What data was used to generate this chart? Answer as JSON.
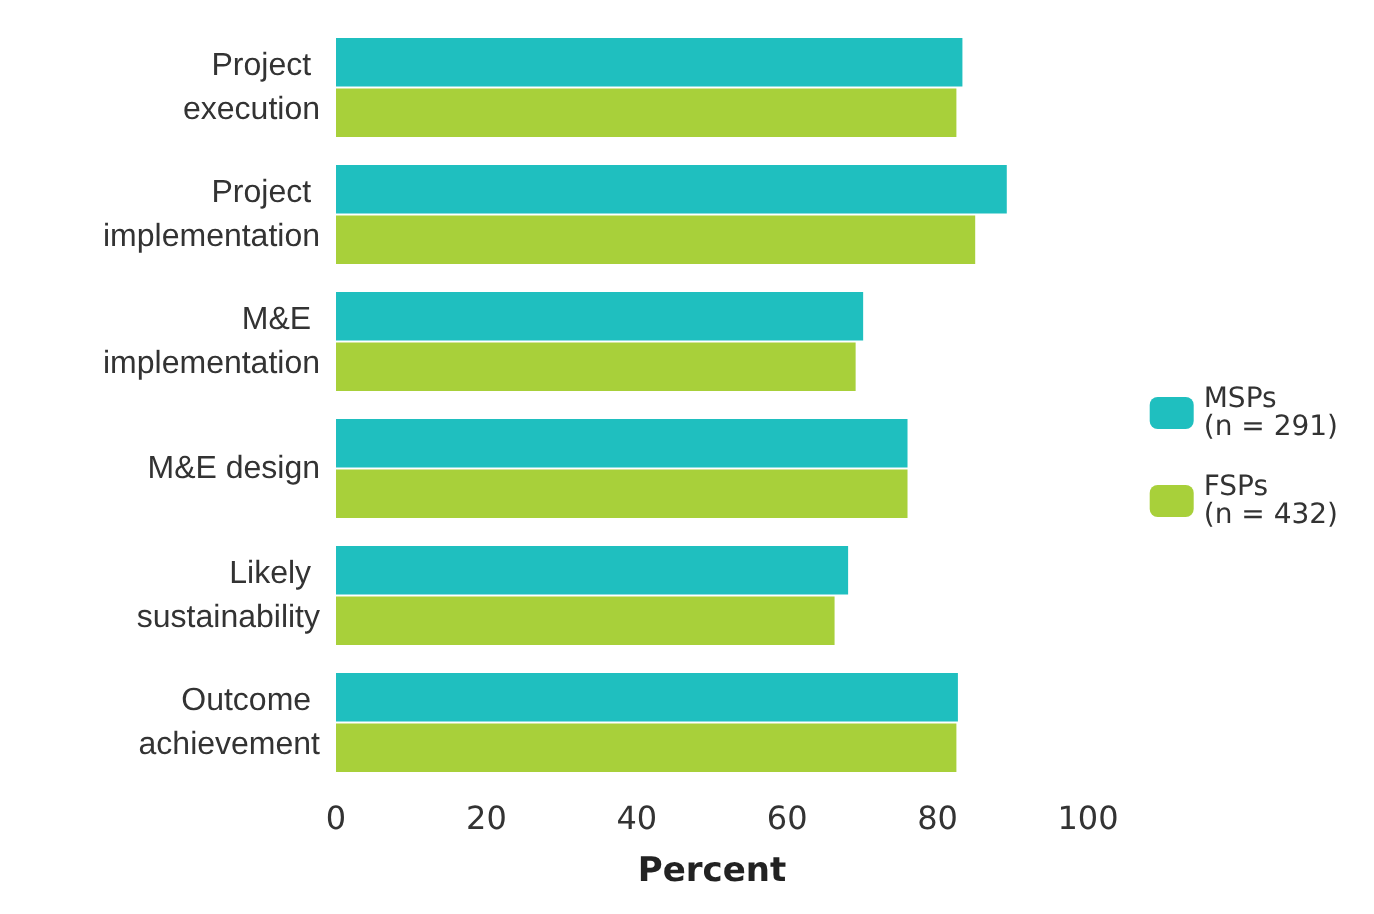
{
  "chart_data": {
    "type": "bar",
    "orientation": "horizontal",
    "categories": [
      "Project execution",
      "Project implementation",
      "M&E implementation",
      "M&E design",
      "Likely sustainability",
      "Outcome achievement"
    ],
    "series": [
      {
        "name": "MSPs\n(n = 291)",
        "color": "#1fbfbf",
        "values": [
          83.3,
          89.2,
          70.1,
          76,
          68.1,
          82.7
        ]
      },
      {
        "name": "FSPs\n(n = 432)",
        "color": "#a8d03a",
        "values": [
          82.5,
          85,
          69.1,
          76,
          66.3,
          82.5
        ]
      }
    ],
    "xlabel": "Percent",
    "xlim": [
      0,
      100
    ],
    "xticks": [
      0,
      20,
      40,
      60,
      80,
      100
    ],
    "grid": false,
    "legend": "right"
  }
}
